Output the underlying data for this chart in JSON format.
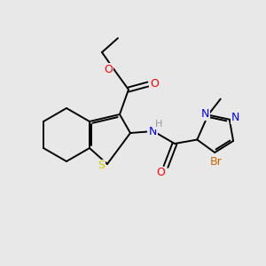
{
  "background_color": "#e8e8e8",
  "bond_color": "#000000",
  "atom_colors": {
    "O": "#ff0000",
    "S": "#cccc00",
    "N": "#0000ff",
    "Br": "#cc6600",
    "H": "#999999",
    "C": "#000000"
  },
  "figsize": [
    3.0,
    3.0
  ],
  "dpi": 100
}
